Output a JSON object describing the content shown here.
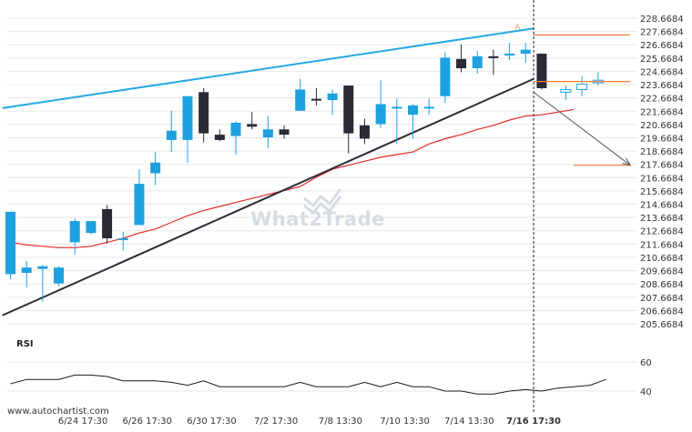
{
  "watermark": "What2Trade",
  "attribution": "www.autochartist.com",
  "rsi_label": "RSI",
  "colors": {
    "bull": "#1ea1e0",
    "bear": "#2b2b36",
    "trend_upper": "#25a8e0",
    "trend_lower": "#2b2b36",
    "ma": "#e02a2a",
    "level": "#ff7a2e",
    "grid": "#e8e8e8",
    "rsi": "#1a1a1a"
  },
  "chart_data": [
    {
      "type": "candlestick",
      "title": "",
      "y_ticks": [
        "228.6684",
        "227.6684",
        "226.6684",
        "225.6684",
        "224.6684",
        "223.6684",
        "222.6684",
        "221.6684",
        "220.6684",
        "219.6684",
        "218.6684",
        "217.6684",
        "216.6684",
        "215.6684",
        "214.6684",
        "213.6684",
        "212.6684",
        "211.6684",
        "210.6684",
        "209.6684",
        "208.6684",
        "207.6684",
        "206.6684",
        "205.6684"
      ],
      "ylim": [
        205.6684,
        228.6684
      ],
      "x_ticks": [
        {
          "label": "6/24 17:30",
          "index": 4.5
        },
        {
          "label": "6/26 17:30",
          "index": 8.5
        },
        {
          "label": "6/30 17:30",
          "index": 12.5
        },
        {
          "label": "7/2 17:30",
          "index": 16.5
        },
        {
          "label": "7/8 13:30",
          "index": 20.5
        },
        {
          "label": "7/10 13:30",
          "index": 24.5
        },
        {
          "label": "7/14 13:30",
          "index": 28.5
        },
        {
          "label": "7/16 17:30",
          "index": 32.5,
          "bold": true
        }
      ],
      "candles": [
        {
          "o": 209.4,
          "h": 214.1,
          "l": 209.0,
          "c": 214.1
        },
        {
          "o": 209.5,
          "h": 210.4,
          "l": 208.4,
          "c": 209.9
        },
        {
          "o": 209.8,
          "h": 210.1,
          "l": 207.3,
          "c": 210.0
        },
        {
          "o": 208.7,
          "h": 210.0,
          "l": 208.5,
          "c": 209.9
        },
        {
          "o": 211.8,
          "h": 213.6,
          "l": 210.9,
          "c": 213.4
        },
        {
          "o": 212.5,
          "h": 213.4,
          "l": 212.4,
          "c": 213.4
        },
        {
          "o": 214.3,
          "h": 214.6,
          "l": 211.7,
          "c": 212.1
        },
        {
          "o": 212.1,
          "h": 212.6,
          "l": 211.2,
          "c": 212.1
        },
        {
          "o": 213.1,
          "h": 217.3,
          "l": 213.1,
          "c": 216.2
        },
        {
          "o": 217.0,
          "h": 218.6,
          "l": 216.1,
          "c": 217.8
        },
        {
          "o": 219.5,
          "h": 221.7,
          "l": 218.6,
          "c": 220.2
        },
        {
          "o": 219.5,
          "h": 222.8,
          "l": 217.8,
          "c": 222.8
        },
        {
          "o": 223.1,
          "h": 223.4,
          "l": 219.3,
          "c": 220.0
        },
        {
          "o": 219.9,
          "h": 220.3,
          "l": 219.4,
          "c": 219.5
        },
        {
          "o": 219.8,
          "h": 220.9,
          "l": 218.4,
          "c": 220.8
        },
        {
          "o": 220.7,
          "h": 221.6,
          "l": 220.3,
          "c": 220.5
        },
        {
          "o": 219.7,
          "h": 221.3,
          "l": 218.9,
          "c": 220.3
        },
        {
          "o": 220.3,
          "h": 220.6,
          "l": 219.6,
          "c": 219.9
        },
        {
          "o": 221.7,
          "h": 224.1,
          "l": 221.7,
          "c": 223.3
        },
        {
          "o": 222.6,
          "h": 223.4,
          "l": 222.1,
          "c": 222.5
        },
        {
          "o": 222.5,
          "h": 223.3,
          "l": 221.4,
          "c": 223.0
        },
        {
          "o": 223.6,
          "h": 223.6,
          "l": 218.5,
          "c": 220.0
        },
        {
          "o": 220.6,
          "h": 221.1,
          "l": 219.2,
          "c": 219.6
        },
        {
          "o": 220.7,
          "h": 224.0,
          "l": 220.4,
          "c": 222.2
        },
        {
          "o": 222.0,
          "h": 222.6,
          "l": 219.2,
          "c": 222.0
        },
        {
          "o": 221.4,
          "h": 222.2,
          "l": 219.6,
          "c": 222.1
        },
        {
          "o": 222.0,
          "h": 222.6,
          "l": 221.4,
          "c": 222.0
        },
        {
          "o": 222.8,
          "h": 226.1,
          "l": 222.3,
          "c": 225.7
        },
        {
          "o": 225.6,
          "h": 226.7,
          "l": 224.6,
          "c": 224.9
        },
        {
          "o": 224.9,
          "h": 226.2,
          "l": 224.5,
          "c": 225.8
        },
        {
          "o": 225.8,
          "h": 226.3,
          "l": 224.4,
          "c": 225.7
        },
        {
          "o": 225.9,
          "h": 226.8,
          "l": 225.5,
          "c": 226.0
        },
        {
          "o": 226.0,
          "h": 226.8,
          "l": 225.3,
          "c": 226.3
        },
        {
          "o": 226.0,
          "h": 226.0,
          "l": 223.3,
          "c": 223.4
        }
      ],
      "forecast_candles": [
        {
          "o": 223.1,
          "h": 223.6,
          "l": 222.5,
          "c": 223.3
        },
        {
          "o": 223.3,
          "h": 224.3,
          "l": 222.8,
          "c": 223.7
        },
        {
          "o": 223.8,
          "h": 224.6,
          "l": 223.6,
          "c": 224.0
        }
      ],
      "moving_average": [
        211.8,
        211.6,
        211.5,
        211.4,
        211.4,
        211.5,
        211.8,
        212.1,
        212.5,
        212.8,
        213.3,
        213.8,
        214.2,
        214.5,
        214.8,
        215.1,
        215.4,
        215.7,
        216.0,
        216.7,
        217.3,
        217.6,
        217.9,
        218.2,
        218.4,
        218.6,
        219.2,
        219.6,
        219.9,
        220.3,
        220.6,
        221.0,
        221.3,
        221.4,
        221.6,
        221.8
      ],
      "trendline_upper": {
        "from": {
          "index": -0.5,
          "value": 221.9
        },
        "to": {
          "index": 32.5,
          "value": 227.9
        }
      },
      "trendline_lower": {
        "from": {
          "index": -0.5,
          "value": 206.3
        },
        "to": {
          "index": 32.5,
          "value": 224.1
        }
      },
      "target_arrow": {
        "from": {
          "index": 32.5,
          "value": 223.1
        },
        "to": {
          "index": 38.5,
          "value": 217.6
        }
      },
      "levels": [
        {
          "value": 227.4,
          "from_index": 32.5,
          "to_index": 38.5
        },
        {
          "value": 223.9,
          "from_index": 32.5,
          "to_index": 38.5
        },
        {
          "value": 217.6,
          "from_index": 35.0,
          "to_index": 38.5
        }
      ],
      "marker": {
        "label": "A",
        "index": 31.5,
        "value": 227.8
      },
      "current_time_index": 32.5
    },
    {
      "type": "line",
      "title": "RSI",
      "y_ticks": [
        "60",
        "40"
      ],
      "ylim": [
        35,
        65
      ],
      "values": [
        45,
        48,
        48,
        48,
        51,
        51,
        50,
        47,
        47,
        47,
        46,
        44,
        47,
        43,
        43,
        43,
        43,
        43,
        46,
        43,
        43,
        43,
        46,
        43,
        46,
        43,
        43,
        40,
        40,
        38,
        38,
        40,
        41,
        40,
        42,
        43,
        44,
        48
      ]
    }
  ]
}
